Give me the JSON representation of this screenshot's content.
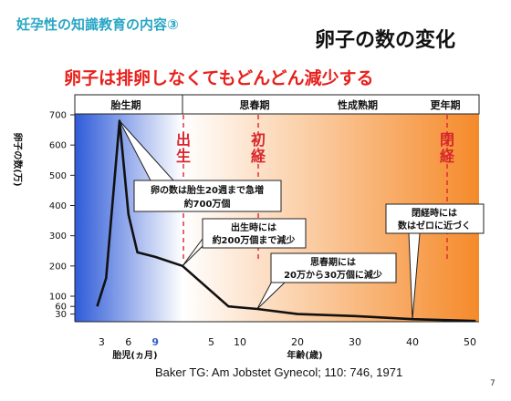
{
  "header": {
    "series_title": "妊孕性の知識教育の内容③",
    "slide_title": "卵子の数の変化",
    "headline": "卵子は排卵しなくてもどんどん減少する"
  },
  "footer": {
    "citation": "Baker TG: Am Jobstet Gynecol; 110: 746, 1971",
    "page_number": "7"
  },
  "chart_data": {
    "type": "line",
    "ylabel": "卵子の数(万)",
    "x_axis_fetal": {
      "label": "胎児(ヵ月)",
      "ticks": [
        "3",
        "6",
        "9"
      ]
    },
    "x_axis_age": {
      "label": "年齢(歳)",
      "ticks": [
        "5",
        "10",
        "20",
        "30",
        "40",
        "50"
      ]
    },
    "y_ticks": [
      30,
      60,
      100,
      200,
      300,
      400,
      500,
      600,
      700
    ],
    "phases": [
      "胎生期",
      "思春期",
      "性成熟期",
      "更年期"
    ],
    "markers": [
      "出生",
      "初経",
      "閉経"
    ],
    "annotations": [
      {
        "lines": [
          "卵の数は胎生20週まで急増",
          "約700万個"
        ]
      },
      {
        "lines": [
          "出生時には",
          "約200万個まで減少"
        ]
      },
      {
        "lines": [
          "思春期には",
          "20万から30万個に減少"
        ]
      },
      {
        "lines": [
          "閉経時には",
          "数はゼロに近づく"
        ]
      }
    ],
    "series": [
      {
        "points": [
          {
            "stage": "fetal",
            "x": 2.5,
            "y": 60
          },
          {
            "stage": "fetal",
            "x": 3.5,
            "y": 160
          },
          {
            "stage": "fetal",
            "x": 5,
            "y": 680
          },
          {
            "stage": "fetal",
            "x": 6,
            "y": 370
          },
          {
            "stage": "fetal",
            "x": 7,
            "y": 245
          },
          {
            "stage": "fetal",
            "x": 9,
            "y": 230
          },
          {
            "stage": "age",
            "x": 0,
            "y": 200
          },
          {
            "stage": "age",
            "x": 8,
            "y": 60
          },
          {
            "stage": "age",
            "x": 13,
            "y": 50
          },
          {
            "stage": "age",
            "x": 20,
            "y": 30
          },
          {
            "stage": "age",
            "x": 30,
            "y": 22
          },
          {
            "stage": "age",
            "x": 40,
            "y": 10
          },
          {
            "stage": "age",
            "x": 51,
            "y": 3
          }
        ]
      }
    ],
    "colors": {
      "fetal_gradient_start": "#2f5bd8",
      "fetal_gradient_end": "#ffffff",
      "adult_gradient_start": "#ffffff",
      "adult_gradient_end": "#f58a2a",
      "marker_color": "#d8272d",
      "line_color": "#111111"
    }
  }
}
